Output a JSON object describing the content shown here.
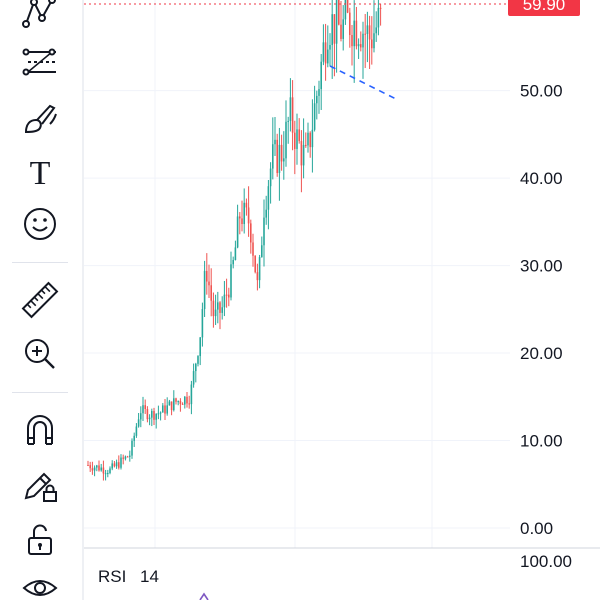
{
  "toolbar": {
    "tools": [
      {
        "name": "pattern-tool",
        "icon": "pattern-icon"
      },
      {
        "name": "fib-levels-tool",
        "icon": "fib-levels-icon"
      },
      {
        "name": "brush-tool",
        "icon": "brush-icon"
      },
      {
        "name": "text-tool",
        "icon": "text-icon"
      },
      {
        "name": "emoji-tool",
        "icon": "smiley-icon"
      },
      {
        "name": "measure-tool",
        "icon": "ruler-icon"
      },
      {
        "name": "zoom-tool",
        "icon": "zoom-in-icon"
      },
      {
        "name": "magnet-tool",
        "icon": "magnet-icon"
      },
      {
        "name": "lock-drawing-tool",
        "icon": "pencil-lock-icon"
      },
      {
        "name": "lock-all-tool",
        "icon": "unlock-icon"
      },
      {
        "name": "visibility-tool",
        "icon": "eye-icon"
      }
    ],
    "text_tool_glyph": "T"
  },
  "colors": {
    "up": "#26a69a",
    "down": "#ef5350",
    "last_price_bg": "#f23645",
    "trendline": "#2962ff",
    "grid": "#f0f3fa",
    "text": "#131722"
  },
  "price_axis": {
    "ticks": [
      "0.00",
      "10.00",
      "20.00",
      "30.00",
      "40.00",
      "50.00"
    ],
    "last_price": "59.90"
  },
  "rsi": {
    "title": "RSI",
    "length": "14",
    "top_label": "100.00"
  },
  "chart_data": {
    "type": "candlestick",
    "yrange": [
      0,
      60
    ],
    "last_price": 59.9,
    "candles": []
  }
}
